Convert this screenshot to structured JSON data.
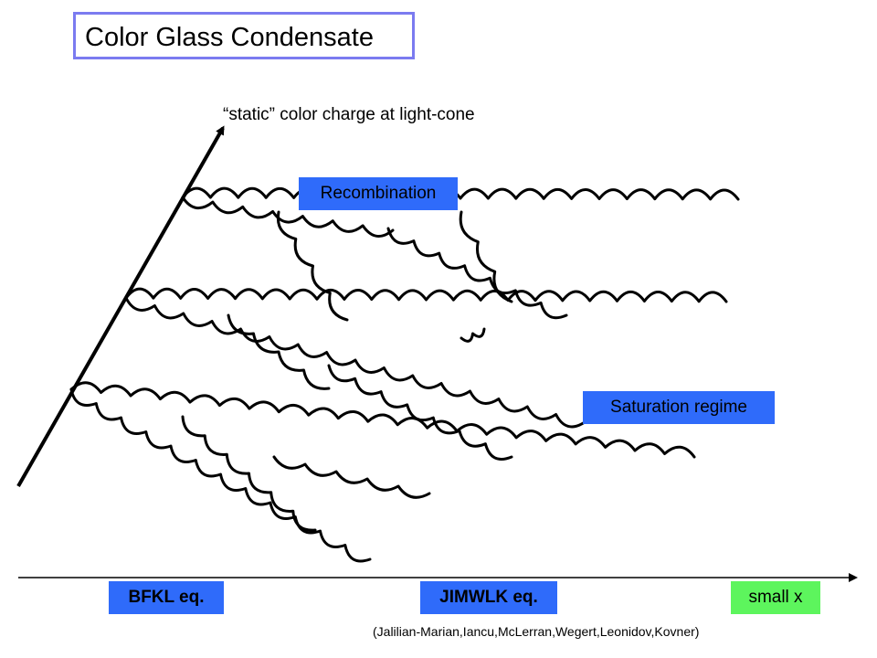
{
  "title": "Color Glass Condensate",
  "labels": {
    "static_charge": "“static” color charge at light-cone",
    "recombination": "Recombination",
    "saturation": "Saturation regime",
    "bfkl": "BFKL eq.",
    "jimwlk": "JIMWLK eq.",
    "small_x": "small x",
    "citation": "(Jalilian-Marian,Iancu,McLerran,Wegert,Leonidov,Kovner)"
  },
  "colors": {
    "title_border": "#7b7bf0",
    "blue_box": "#2f6bfa",
    "green_box": "#5df55d",
    "line": "#000000"
  }
}
